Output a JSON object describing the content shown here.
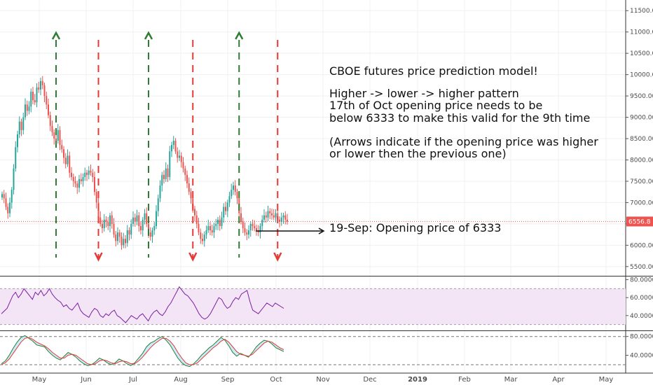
{
  "chart_data": {
    "type": "candlestick",
    "colors": {
      "up": "#26a69a",
      "down": "#ef5350",
      "higher_arrow": "#2e7d32",
      "lower_arrow": "#e53935",
      "price_line": "#ef5350",
      "rsi_band": "#f3e5f5",
      "rsi_line": "#7b1fa2",
      "stoch_k": "#2e7d32",
      "stoch_d": "#e53935",
      "stoch_fill": "#b3e5fc"
    },
    "x_axis": {
      "tick_labels": [
        "May",
        "Jun",
        "Jul",
        "Aug",
        "Sep",
        "Oct",
        "Nov",
        "Dec",
        "2019",
        "Feb",
        "Mar",
        "Apr",
        "May"
      ]
    },
    "price_axis": {
      "ticks": [
        "11500.00",
        "11000.00",
        "10500.00",
        "10000.00",
        "9500.00",
        "9000.00",
        "8500.00",
        "8000.00",
        "7500.00",
        "7000.00",
        "6500.00",
        "6000.00",
        "5500.00"
      ],
      "ylim": [
        5300,
        11750
      ],
      "last_price_label": "6556.8",
      "last_price": 6556.8
    },
    "rsi_axis": {
      "ticks": [
        "80.0000",
        "60.0000",
        "40.0000"
      ],
      "band": [
        30,
        70
      ],
      "ylim": [
        25,
        82
      ]
    },
    "stoch_axis": {
      "ticks": [
        "80.0000",
        "40.0000"
      ],
      "levels": [
        80,
        20
      ],
      "ylim": [
        5,
        90
      ]
    },
    "series_close": [
      7200,
      7100,
      6900,
      6750,
      7000,
      7300,
      7800,
      8300,
      8600,
      8900,
      8700,
      9000,
      9300,
      9150,
      9250,
      9600,
      9400,
      9350,
      9700,
      9650,
      9850,
      9750,
      9500,
      9300,
      9050,
      8800,
      8650,
      8500,
      8450,
      8700,
      8350,
      8250,
      8050,
      7900,
      8100,
      7700,
      7600,
      7500,
      7450,
      7350,
      7550,
      7500,
      7600,
      7700,
      7650,
      7750,
      7700,
      7600,
      7250,
      7000,
      6650,
      6500,
      6400,
      6600,
      6550,
      6450,
      6700,
      6500,
      6250,
      6100,
      6300,
      6200,
      6000,
      6150,
      6050,
      6350,
      6250,
      6500,
      6650,
      6550,
      6700,
      6450,
      6350,
      6600,
      6750,
      6500,
      6300,
      6200,
      6350,
      6450,
      6800,
      7100,
      7400,
      7650,
      7550,
      7800,
      7600,
      8200,
      8350,
      8450,
      8200,
      8050,
      8100,
      7950,
      7800,
      7650,
      7450,
      7250,
      7100,
      6850,
      6700,
      6500,
      6300,
      6150,
      6100,
      6250,
      6350,
      6450,
      6350,
      6300,
      6450,
      6500,
      6600,
      6450,
      6650,
      6900,
      6800,
      7000,
      7150,
      7300,
      7400,
      7250,
      7100,
      6750,
      6550,
      6400,
      6300,
      6250,
      6350,
      6500,
      6450,
      6400,
      6350,
      6300,
      6450,
      6600,
      6700,
      6650,
      6800,
      6750,
      6700,
      6650,
      6750,
      6600,
      6550,
      6650,
      6700,
      6600,
      6556.8
    ],
    "series_rsi": [
      42,
      45,
      48,
      55,
      62,
      66,
      60,
      64,
      70,
      66,
      62,
      58,
      66,
      63,
      68,
      62,
      65,
      70,
      64,
      60,
      57,
      55,
      50,
      52,
      48,
      46,
      50,
      54,
      46,
      42,
      40,
      38,
      44,
      48,
      46,
      40,
      38,
      42,
      40,
      44,
      46,
      40,
      38,
      35,
      32,
      36,
      40,
      38,
      36,
      40,
      42,
      38,
      34,
      40,
      44,
      46,
      42,
      40,
      44,
      50,
      54,
      60,
      66,
      72,
      68,
      64,
      62,
      58,
      54,
      48,
      42,
      38,
      36,
      38,
      42,
      48,
      54,
      60,
      58,
      52,
      48,
      50,
      56,
      60,
      58,
      64,
      66,
      68,
      56,
      46,
      44,
      42,
      46,
      50,
      54,
      52,
      50,
      54,
      52,
      50,
      48
    ],
    "series_stoch_k": [
      22,
      28,
      40,
      55,
      68,
      78,
      82,
      76,
      70,
      62,
      60,
      58,
      48,
      40,
      34,
      30,
      38,
      46,
      42,
      36,
      28,
      22,
      18,
      20,
      26,
      34,
      30,
      24,
      20,
      24,
      32,
      28,
      22,
      18,
      24,
      34,
      44,
      58,
      66,
      70,
      76,
      80,
      72,
      62,
      48,
      34,
      24,
      18,
      16,
      22,
      30,
      40,
      48,
      56,
      62,
      70,
      78,
      72,
      60,
      46,
      38,
      44,
      40,
      36,
      46,
      58,
      66,
      72,
      70,
      64,
      56,
      52,
      48
    ],
    "series_stoch_d": [
      20,
      24,
      32,
      44,
      56,
      68,
      76,
      78,
      74,
      68,
      64,
      60,
      54,
      46,
      40,
      34,
      34,
      40,
      42,
      40,
      34,
      28,
      22,
      20,
      22,
      28,
      30,
      28,
      24,
      22,
      26,
      28,
      26,
      22,
      22,
      28,
      36,
      46,
      56,
      64,
      70,
      76,
      76,
      70,
      60,
      46,
      34,
      24,
      20,
      20,
      24,
      32,
      40,
      48,
      56,
      62,
      70,
      74,
      68,
      58,
      48,
      42,
      40,
      38,
      42,
      50,
      58,
      66,
      70,
      68,
      62,
      56,
      52
    ],
    "arrows": [
      {
        "direction": "higher",
        "index": 28
      },
      {
        "direction": "lower",
        "index": 50
      },
      {
        "direction": "higher",
        "index": 76
      },
      {
        "direction": "lower",
        "index": 99
      },
      {
        "direction": "higher",
        "index": 123
      },
      {
        "direction": "lower",
        "index": 143
      }
    ],
    "annotation": {
      "lines": [
        "CBOE futures price prediction model!",
        "",
        "Higher -> lower -> higher pattern",
        "17th of Oct opening price needs to be",
        "below 6333 to make this valid for the 9th time",
        "",
        "(Arrows indicate if the opening price was higher",
        "or lower then the previous one)"
      ],
      "callout": "19-Sep: Opening price of 6333",
      "callout_price": 6333
    }
  }
}
